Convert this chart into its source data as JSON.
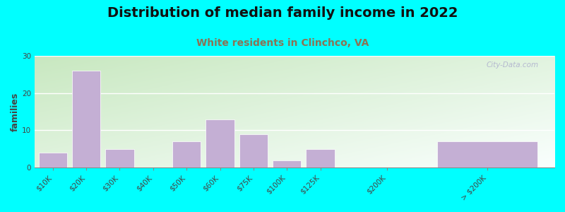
{
  "title": "Distribution of median family income in 2022",
  "subtitle": "White residents in Clinchco, VA",
  "ylabel": "families",
  "background_color": "#00FFFF",
  "bar_color": "#c4afd4",
  "bar_edge_color": "#ffffff",
  "categories": [
    "$10K",
    "$20K",
    "$30K",
    "$40K",
    "$50K",
    "$60K",
    "$75K",
    "$100K",
    "$125K",
    "$200K",
    "> $200K"
  ],
  "values": [
    4,
    26,
    5,
    0,
    7,
    13,
    9,
    2,
    5,
    0,
    7
  ],
  "x_positions": [
    0,
    1,
    2,
    3,
    4,
    5,
    6,
    7,
    8,
    10,
    13
  ],
  "bar_widths": [
    0.85,
    0.85,
    0.85,
    0.85,
    0.85,
    0.85,
    0.85,
    0.85,
    0.85,
    0.85,
    3.0
  ],
  "xlim": [
    -0.55,
    15.0
  ],
  "ylim": [
    0,
    30
  ],
  "yticks": [
    0,
    10,
    20,
    30
  ],
  "title_fontsize": 14,
  "subtitle_fontsize": 10,
  "subtitle_color": "#8b7355",
  "ylabel_fontsize": 9,
  "tick_fontsize": 7.5,
  "watermark": "City-Data.com",
  "grad_top_left": "#c8e8c0",
  "grad_bottom_right": "#f8fff8"
}
